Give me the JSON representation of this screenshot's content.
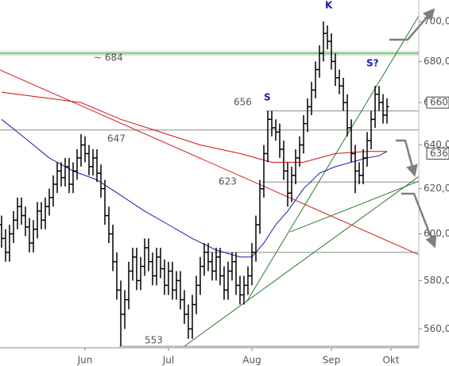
{
  "chart_data": {
    "type": "ohlc",
    "log_scale": true,
    "ylim": [
      552.4,
      711
    ],
    "yticks": [
      {
        "value": 560,
        "label": "560,0"
      },
      {
        "value": 580,
        "label": "580,0"
      },
      {
        "value": 600,
        "label": "600,0"
      },
      {
        "value": 620,
        "label": "620,0"
      },
      {
        "value": 640,
        "label": "640,0"
      },
      {
        "value": 660,
        "label": "660,0"
      },
      {
        "value": 680,
        "label": "680,0"
      },
      {
        "value": 700,
        "label": "700,0"
      }
    ],
    "xlim": [
      -0.4,
      105
    ],
    "xticks": [
      {
        "value": 21,
        "label": "Jun"
      },
      {
        "value": 42,
        "label": "Jul"
      },
      {
        "value": 63,
        "label": "Aug"
      },
      {
        "value": 83,
        "label": "Sep"
      },
      {
        "value": 98,
        "label": "Okt"
      }
    ],
    "color": "#000000",
    "open": [
      604,
      598,
      592,
      600,
      606,
      612,
      608,
      603,
      596,
      602,
      610,
      606,
      612,
      616,
      622,
      628,
      625,
      630,
      622,
      628,
      634,
      640,
      636,
      630,
      634,
      627,
      620,
      608,
      600,
      588,
      576,
      566,
      572,
      584,
      590,
      580,
      586,
      594,
      588,
      582,
      590,
      585,
      578,
      584,
      576,
      580,
      572,
      566,
      560,
      570,
      578,
      586,
      592,
      588,
      584,
      590,
      582,
      576,
      584,
      588,
      578,
      574,
      578,
      582,
      592,
      604,
      620,
      636,
      652,
      648,
      646,
      638,
      628,
      618,
      626,
      634,
      640,
      650,
      658,
      666,
      676,
      684,
      694,
      690,
      680,
      672,
      668,
      660,
      648,
      636,
      628,
      626,
      634,
      642,
      652,
      664,
      660,
      654
    ],
    "high": [
      608,
      602,
      604,
      610,
      616,
      616,
      612,
      607,
      606,
      614,
      614,
      616,
      620,
      626,
      632,
      632,
      634,
      634,
      632,
      638,
      645,
      644,
      640,
      638,
      638,
      631,
      624,
      612,
      604,
      592,
      580,
      576,
      588,
      594,
      594,
      590,
      598,
      598,
      592,
      594,
      594,
      589,
      588,
      588,
      584,
      584,
      576,
      570,
      574,
      582,
      590,
      596,
      596,
      592,
      594,
      594,
      586,
      588,
      592,
      592,
      582,
      582,
      586,
      596,
      608,
      624,
      640,
      656,
      656,
      652,
      650,
      642,
      632,
      630,
      638,
      644,
      654,
      662,
      670,
      680,
      688,
      700,
      698,
      694,
      684,
      676,
      672,
      664,
      652,
      640,
      632,
      638,
      646,
      656,
      668,
      668,
      664,
      662
    ],
    "low": [
      594,
      588,
      588,
      596,
      602,
      604,
      599,
      592,
      592,
      598,
      602,
      602,
      608,
      612,
      618,
      621,
      621,
      618,
      618,
      624,
      630,
      632,
      626,
      626,
      623,
      616,
      604,
      596,
      584,
      572,
      553,
      560,
      568,
      580,
      576,
      576,
      582,
      584,
      578,
      578,
      581,
      574,
      574,
      572,
      572,
      568,
      562,
      556,
      556,
      566,
      574,
      582,
      584,
      580,
      580,
      578,
      572,
      572,
      580,
      574,
      570,
      570,
      574,
      578,
      588,
      600,
      616,
      632,
      644,
      642,
      634,
      624,
      612,
      614,
      622,
      630,
      636,
      646,
      654,
      662,
      672,
      680,
      686,
      676,
      668,
      664,
      656,
      644,
      632,
      618,
      622,
      622,
      630,
      638,
      648,
      656,
      650,
      650
    ],
    "close": [
      598,
      592,
      600,
      606,
      612,
      608,
      603,
      596,
      602,
      610,
      606,
      612,
      616,
      622,
      628,
      625,
      630,
      622,
      628,
      634,
      640,
      636,
      630,
      634,
      627,
      620,
      608,
      600,
      588,
      576,
      566,
      572,
      584,
      590,
      580,
      586,
      594,
      588,
      582,
      590,
      585,
      578,
      584,
      576,
      580,
      572,
      566,
      560,
      570,
      578,
      586,
      592,
      588,
      584,
      590,
      582,
      576,
      584,
      588,
      578,
      574,
      578,
      582,
      592,
      604,
      620,
      636,
      652,
      648,
      646,
      638,
      628,
      618,
      626,
      634,
      640,
      650,
      658,
      666,
      676,
      684,
      694,
      690,
      680,
      672,
      668,
      660,
      648,
      636,
      628,
      626,
      634,
      642,
      652,
      664,
      660,
      654,
      658
    ],
    "overlays": [
      {
        "color": "#1a1aa8",
        "x": [
          0,
          6,
          12,
          18,
          24,
          30,
          36,
          42,
          48,
          54,
          60,
          63,
          66,
          69,
          72,
          76,
          80,
          84,
          88,
          92,
          95,
          97
        ],
        "values": [
          652,
          643,
          634,
          628,
          624,
          617,
          610,
          604,
          598,
          593,
          590,
          590,
          596,
          604,
          610,
          620,
          627,
          630,
          632,
          634,
          635,
          637
        ]
      },
      {
        "color": "#cc1111",
        "x": [
          0,
          20,
          30,
          40,
          50,
          60,
          68,
          76,
          84,
          92,
          97
        ],
        "values": [
          665,
          660,
          652,
          646,
          640,
          636,
          632,
          632,
          636,
          637,
          637
        ]
      }
    ],
    "trendlines": [
      {
        "color": "#2a7a2a",
        "x": [
          46,
          105
        ],
        "values": [
          553,
          625.5
        ]
      },
      {
        "color": "#2a7a2a",
        "x": [
          61.6,
          105
        ],
        "values": [
          571,
          702.8
        ]
      },
      {
        "color": "#2a7a2a",
        "x": [
          72.6,
          105
        ],
        "values": [
          600.8,
          623.4
        ]
      },
      {
        "color": "#cc2222",
        "x": [
          -0.4,
          105
        ],
        "values": [
          675.8,
          591
        ]
      }
    ],
    "levels": [
      {
        "value": 684,
        "label": "~ 684",
        "color": "#5aa85a",
        "x": [
          -0.4,
          105
        ]
      },
      {
        "value": 656,
        "label": "656",
        "color": "#8a8a8a",
        "x": [
          66.6,
          105
        ]
      },
      {
        "value": 647,
        "label": "647",
        "color": "#8a8a8a",
        "x": [
          -0.4,
          105
        ]
      },
      {
        "value": 623,
        "label": "623",
        "color": "#8a8a8a",
        "x": [
          65.6,
          105
        ]
      },
      {
        "value": 592,
        "color": "#8a8a8a",
        "x": [
          50.6,
          105
        ]
      },
      {
        "value": 553,
        "label": "553",
        "color": "#8a8a8a",
        "x": [
          29.6,
          105
        ]
      }
    ],
    "price_tags": [
      660,
      636
    ],
    "annotations": [
      "S",
      "S?",
      "K"
    ]
  }
}
